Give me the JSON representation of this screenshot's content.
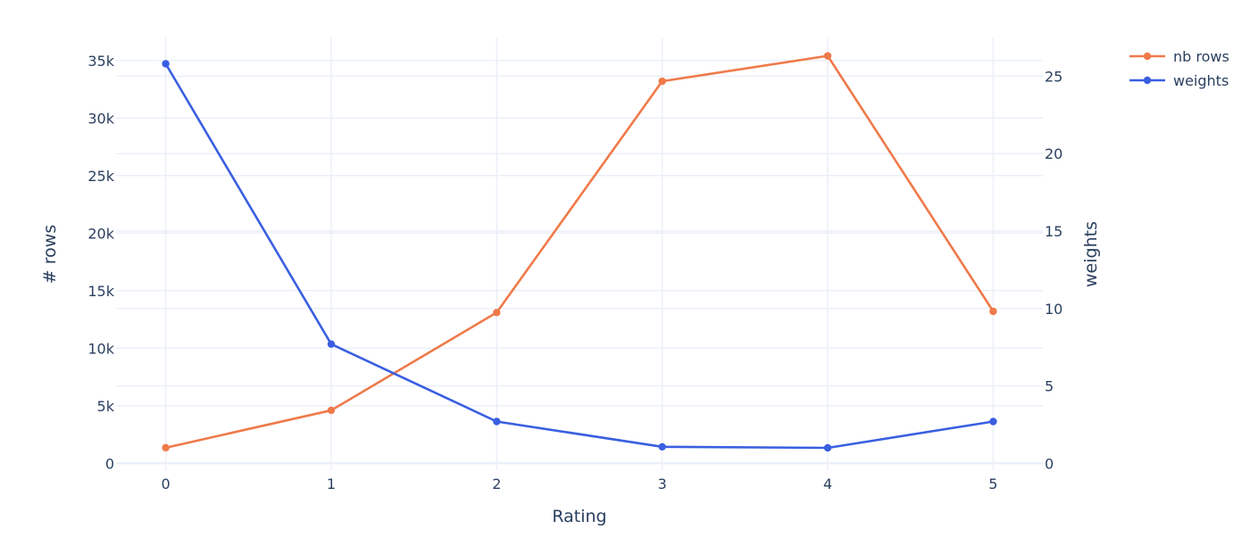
{
  "chart_data": {
    "type": "line",
    "x": [
      0,
      1,
      2,
      3,
      4,
      5
    ],
    "xlabel": "Rating",
    "ylabel_left": "# rows",
    "ylabel_right": "weights",
    "y_left_range": [
      -600,
      37000
    ],
    "y_right_range": [
      -0.44,
      27.5
    ],
    "x_range": [
      -0.3,
      5.3
    ],
    "x_ticks": [
      "0",
      "1",
      "2",
      "3",
      "4",
      "5"
    ],
    "y_left_ticks": [
      {
        "value": 0,
        "label": "0"
      },
      {
        "value": 5000,
        "label": "5k"
      },
      {
        "value": 10000,
        "label": "10k"
      },
      {
        "value": 15000,
        "label": "15k"
      },
      {
        "value": 20000,
        "label": "20k"
      },
      {
        "value": 25000,
        "label": "25k"
      },
      {
        "value": 30000,
        "label": "30k"
      },
      {
        "value": 35000,
        "label": "35k"
      }
    ],
    "y_right_ticks": [
      {
        "value": 0,
        "label": "0"
      },
      {
        "value": 5,
        "label": "5"
      },
      {
        "value": 10,
        "label": "10"
      },
      {
        "value": 15,
        "label": "15"
      },
      {
        "value": 20,
        "label": "20"
      },
      {
        "value": 25,
        "label": "25"
      }
    ],
    "grid": true,
    "legend_position": "top-right",
    "series": [
      {
        "name": "nb rows",
        "axis": "left",
        "color": "#EF7A4A",
        "values": [
          1350,
          4600,
          13100,
          33200,
          35400,
          13200
        ]
      },
      {
        "name": "weights",
        "axis": "right",
        "color": "#3A5FE0",
        "values": [
          25.8,
          7.7,
          2.7,
          1.07,
          1.0,
          2.7
        ]
      }
    ]
  }
}
